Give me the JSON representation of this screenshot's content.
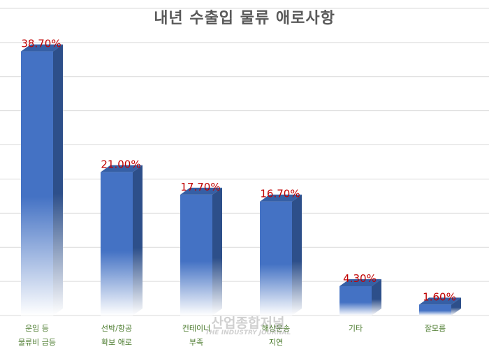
{
  "colors": {
    "bar_front": "#4472c4",
    "bar_side": "#2d4f8a",
    "bar_top": "#365fa5",
    "data_label": "#c00000",
    "category_label": "#4a7a2c",
    "gridline": "#d9d9d9"
  },
  "chart_data": {
    "type": "bar",
    "title": "내년 수출입 물류 애로사항",
    "xlabel": "",
    "ylabel": "",
    "ylim": [
      0,
      45
    ],
    "grid": true,
    "categories": [
      [
        "운임 등",
        "물류비 급등"
      ],
      [
        "선박/항공",
        "확보 애로"
      ],
      [
        "컨테이너",
        "부족"
      ],
      [
        "해상운송",
        "지연"
      ],
      [
        "기타"
      ],
      [
        "잘모름"
      ]
    ],
    "values": [
      38.7,
      21.0,
      17.7,
      16.7,
      4.3,
      1.6
    ],
    "data_labels": [
      "38.70%",
      "21.00%",
      "17.70%",
      "16.70%",
      "4.30%",
      "1.60%"
    ]
  },
  "watermark": {
    "text_ko": "산업종합저널",
    "text_en": "THE INDUSTRY JOURNAL"
  }
}
